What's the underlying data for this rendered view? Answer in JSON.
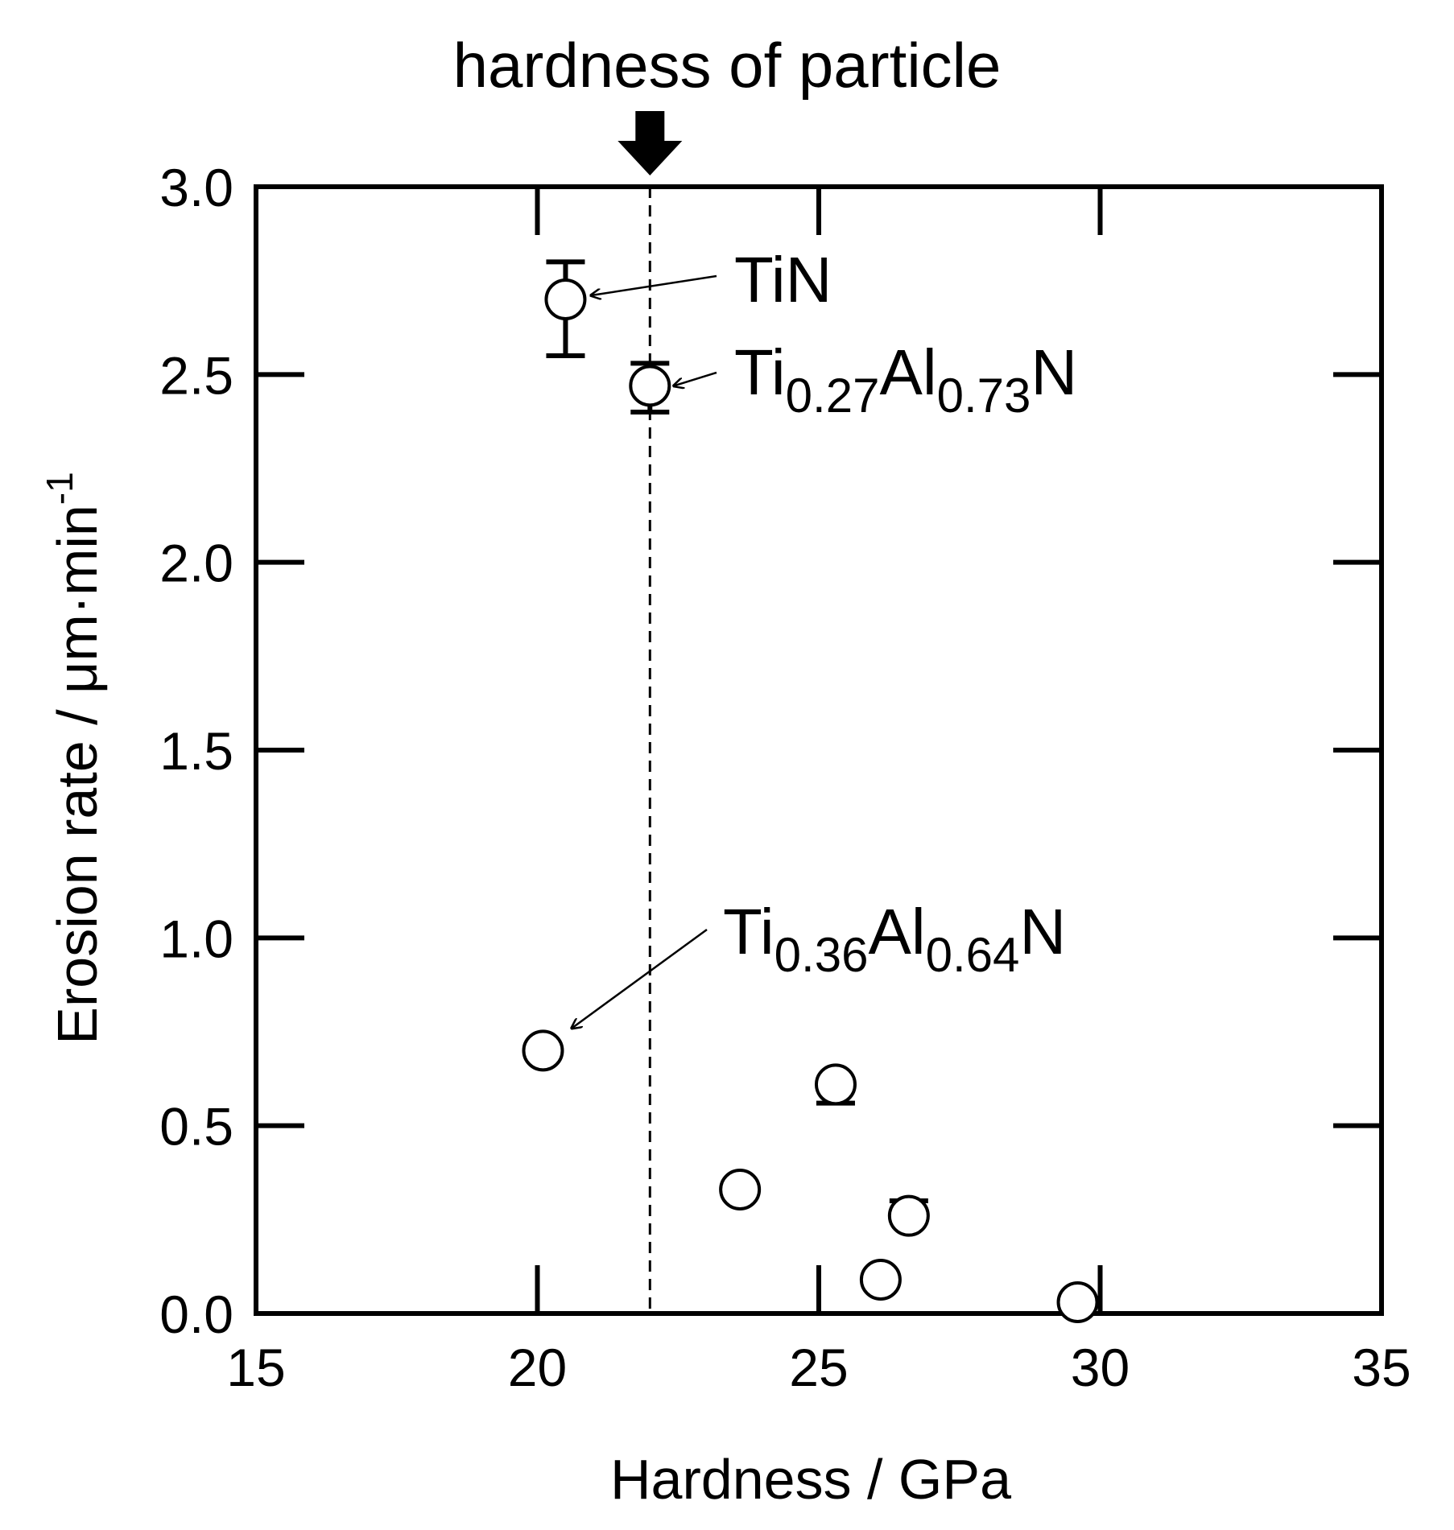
{
  "chart_data": {
    "type": "scatter",
    "xlabel": "Hardness / GPa",
    "ylabel": "Erosion rate / μm·min",
    "ylabel_superscript": "-1",
    "xlim": [
      15,
      35
    ],
    "ylim": [
      0.0,
      3.0
    ],
    "xticks": [
      15,
      20,
      25,
      30,
      35
    ],
    "xtick_labels": [
      "15",
      "20",
      "25",
      "30",
      "35"
    ],
    "yticks": [
      0.0,
      0.5,
      1.0,
      1.5,
      2.0,
      2.5,
      3.0
    ],
    "ytick_labels": [
      "0.0",
      "0.5",
      "1.0",
      "1.5",
      "2.0",
      "2.5",
      "3.0"
    ],
    "marker": "open-circle",
    "points": [
      {
        "x": 20.5,
        "y": 2.7,
        "err_low": 2.55,
        "err_high": 2.8
      },
      {
        "x": 22.0,
        "y": 2.47,
        "err_low": 2.4,
        "err_high": 2.53
      },
      {
        "x": 20.1,
        "y": 0.7
      },
      {
        "x": 25.3,
        "y": 0.61,
        "err_low": 0.56,
        "err_high": 0.61
      },
      {
        "x": 23.6,
        "y": 0.33
      },
      {
        "x": 26.6,
        "y": 0.26,
        "err_low": 0.26,
        "err_high": 0.3
      },
      {
        "x": 26.1,
        "y": 0.09
      },
      {
        "x": 29.6,
        "y": 0.03
      }
    ],
    "reference_line": {
      "x": 22.0,
      "style": "dashed",
      "label": "hardness of particle"
    },
    "annotations": [
      {
        "main": "TiN",
        "parts": [
          {
            "t": "TiN",
            "sub": false
          }
        ],
        "target": {
          "x": 20.5,
          "y": 2.7
        }
      },
      {
        "main": "Ti0.27Al0.73N",
        "parts": [
          {
            "t": "Ti",
            "sub": false
          },
          {
            "t": "0.27",
            "sub": true
          },
          {
            "t": "Al",
            "sub": false
          },
          {
            "t": "0.73",
            "sub": true
          },
          {
            "t": "N",
            "sub": false
          }
        ],
        "target": {
          "x": 22.0,
          "y": 2.47
        }
      },
      {
        "main": "Ti0.36Al0.64N",
        "parts": [
          {
            "t": "Ti",
            "sub": false
          },
          {
            "t": "0.36",
            "sub": true
          },
          {
            "t": "Al",
            "sub": false
          },
          {
            "t": "0.64",
            "sub": true
          },
          {
            "t": "N",
            "sub": false
          }
        ],
        "target": {
          "x": 20.1,
          "y": 0.7
        }
      }
    ],
    "grid": false
  }
}
